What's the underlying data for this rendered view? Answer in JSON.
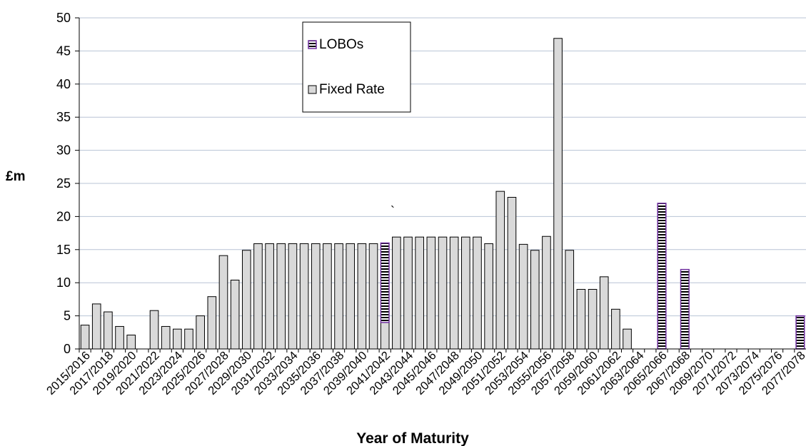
{
  "chart_data": {
    "type": "bar",
    "title": "",
    "ylabel": "£m",
    "xlabel": "Year of Maturity",
    "ylim": [
      0,
      50
    ],
    "yticks": [
      0,
      5,
      10,
      15,
      20,
      25,
      30,
      35,
      40,
      45,
      50
    ],
    "grid": "horizontal",
    "legend_position": "top-center",
    "stacked": true,
    "categories": [
      "2015/2016",
      "2016/2017",
      "2017/2018",
      "2018/2019",
      "2019/2020",
      "2020/2021",
      "2021/2022",
      "2022/2023",
      "2023/2024",
      "2024/2025",
      "2025/2026",
      "2026/2027",
      "2027/2028",
      "2028/2029",
      "2029/2030",
      "2030/2031",
      "2031/2032",
      "2032/2033",
      "2033/2034",
      "2034/2035",
      "2035/2036",
      "2036/2037",
      "2037/2038",
      "2038/2039",
      "2039/2040",
      "2040/2041",
      "2041/2042",
      "2042/2043",
      "2043/2044",
      "2044/2045",
      "2045/2046",
      "2046/2047",
      "2047/2048",
      "2048/2049",
      "2049/2050",
      "2050/2051",
      "2051/2052",
      "2052/2053",
      "2053/2054",
      "2054/2055",
      "2055/2056",
      "2056/2057",
      "2057/2058",
      "2058/2059",
      "2059/2060",
      "2060/2061",
      "2061/2062",
      "2062/2063",
      "2063/2064",
      "2064/2065",
      "2065/2066",
      "2066/2067",
      "2067/2068",
      "2068/2069",
      "2069/2070",
      "2070/2071",
      "2071/2072",
      "2072/2073",
      "2073/2074",
      "2074/2075",
      "2075/2076",
      "2076/2077",
      "2077/2078"
    ],
    "tick_labels": [
      "2015/2016",
      "2017/2018",
      "2019/2020",
      "2021/2022",
      "2023/2024",
      "2025/2026",
      "2027/2028",
      "2029/2030",
      "2031/2032",
      "2033/2034",
      "2035/2036",
      "2037/2038",
      "2039/2040",
      "2041/2042",
      "2043/2044",
      "2045/2046",
      "2047/2048",
      "2049/2050",
      "2051/2052",
      "2053/2054",
      "2055/2056",
      "2057/2058",
      "2059/2060",
      "2061/2062",
      "2063/2064",
      "2065/2066",
      "2067/2068",
      "2069/2070",
      "2071/2072",
      "2073/2074",
      "2075/2076",
      "2077/2078"
    ],
    "series": [
      {
        "name": "Fixed Rate",
        "color": "#d9d9d9",
        "pattern": "solid",
        "values": [
          3.6,
          6.8,
          5.6,
          3.4,
          2.1,
          0,
          5.8,
          3.4,
          3,
          3,
          5,
          7.9,
          14.1,
          10.4,
          14.9,
          15.9,
          15.9,
          15.9,
          15.9,
          15.9,
          15.9,
          15.9,
          15.9,
          15.9,
          15.9,
          15.9,
          4,
          16.9,
          16.9,
          16.9,
          16.9,
          16.9,
          16.9,
          16.9,
          16.9,
          15.9,
          23.8,
          22.9,
          15.8,
          14.9,
          17,
          46.9,
          14.9,
          9,
          9,
          10.9,
          6,
          3,
          0,
          0,
          0,
          0,
          0,
          0,
          0,
          0,
          0,
          0,
          0,
          0,
          0,
          0,
          0
        ]
      },
      {
        "name": "LOBOs",
        "color": "#7030a0",
        "pattern": "horizontal-stripes",
        "values": [
          0,
          0,
          0,
          0,
          0,
          0,
          0,
          0,
          0,
          0,
          0,
          0,
          0,
          0,
          0,
          0,
          0,
          0,
          0,
          0,
          0,
          0,
          0,
          0,
          0,
          0,
          12,
          0,
          0,
          0,
          0,
          0,
          0,
          0,
          0,
          0,
          0,
          0,
          0,
          0,
          0,
          0,
          0,
          0,
          0,
          0,
          0,
          0,
          0,
          0,
          22,
          0,
          12,
          0,
          0,
          0,
          0,
          0,
          0,
          0,
          0,
          0,
          5
        ]
      }
    ],
    "annotations": [
      "`"
    ]
  }
}
